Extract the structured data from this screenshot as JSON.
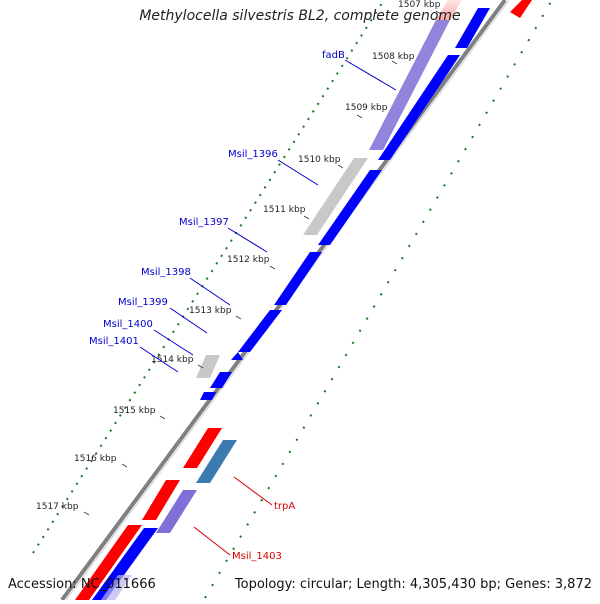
{
  "title": "Methylocella silvestris BL2, complete genome",
  "footer": {
    "accession": "Accession: NC_011666",
    "topology": "Topology: circular; Length: 4,305,430 bp; Genes: 3,872"
  },
  "colors": {
    "forward_cds": "#ff0000",
    "reverse_cds": "#0000ff",
    "gray_feature": "#c8c8c8",
    "purple_feature": "#7f6fd6",
    "steel_feature": "#3c7bb0",
    "backbone": "#808080",
    "gc_tick": "#1a7a1a",
    "label_blue": "#0000cc",
    "label_red": "#d40000"
  },
  "kbp_ticks": [
    {
      "label": "1507 kbp",
      "kbp": 1507
    },
    {
      "label": "1508 kbp",
      "kbp": 1508
    },
    {
      "label": "1509 kbp",
      "kbp": 1509
    },
    {
      "label": "1510 kbp",
      "kbp": 1510
    },
    {
      "label": "1511 kbp",
      "kbp": 1511
    },
    {
      "label": "1512 kbp",
      "kbp": 1512
    },
    {
      "label": "1513 kbp",
      "kbp": 1513
    },
    {
      "label": "1514 kbp",
      "kbp": 1514
    },
    {
      "label": "1515 kbp",
      "kbp": 1515
    },
    {
      "label": "1516 kbp",
      "kbp": 1516
    },
    {
      "label": "1517 kbp",
      "kbp": 1517
    }
  ],
  "gene_labels": [
    {
      "name": "fadB",
      "color": "blue"
    },
    {
      "name": "Msil_1396",
      "color": "blue"
    },
    {
      "name": "Msil_1397",
      "color": "blue"
    },
    {
      "name": "Msil_1398",
      "color": "blue"
    },
    {
      "name": "Msil_1399",
      "color": "blue"
    },
    {
      "name": "Msil_1400",
      "color": "blue"
    },
    {
      "name": "Msil_1401",
      "color": "blue"
    },
    {
      "name": "trpA",
      "color": "red"
    },
    {
      "name": "Msil_1403",
      "color": "red"
    }
  ]
}
